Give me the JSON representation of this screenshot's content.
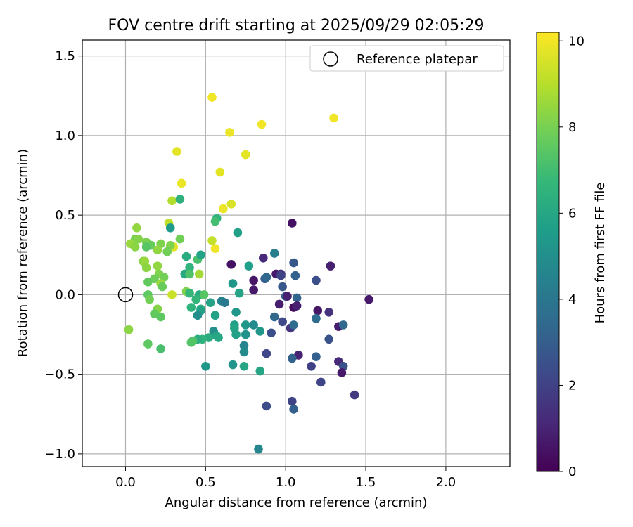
{
  "chart_data": {
    "type": "scatter",
    "title": "FOV centre drift starting at 2025/09/29 02:05:29",
    "xlabel": "Angular distance from reference (arcmin)",
    "ylabel": "Rotation from reference (arcmin)",
    "xlim": [
      -0.27,
      2.4
    ],
    "ylim": [
      -1.08,
      1.6
    ],
    "xticks": [
      0.0,
      0.5,
      1.0,
      1.5,
      2.0
    ],
    "xtick_labels": [
      "0.0",
      "0.5",
      "1.0",
      "1.5",
      "2.0"
    ],
    "yticks": [
      -1.0,
      -0.5,
      0.0,
      0.5,
      1.0,
      1.5
    ],
    "ytick_labels": [
      "−1.0",
      "−0.5",
      "0.0",
      "0.5",
      "1.0",
      "1.5"
    ],
    "grid": true,
    "legend": {
      "position": "top-right",
      "label": "Reference platepar"
    },
    "reference_point": {
      "x": 0.0,
      "y": 0.0
    },
    "colorbar": {
      "label": "Hours from first FF file",
      "range": [
        0,
        10.2
      ],
      "ticks": [
        0,
        2,
        4,
        6,
        8,
        10
      ],
      "tick_labels": [
        "0",
        "2",
        "4",
        "6",
        "8",
        "10"
      ],
      "colormap": [
        "#440154",
        "#482878",
        "#3e4989",
        "#31688e",
        "#26828e",
        "#1f9e89",
        "#35b779",
        "#6ece58",
        "#b5de2b",
        "#fde725"
      ]
    },
    "points": [
      {
        "x": 0.54,
        "y": 1.24,
        "h": 10.0
      },
      {
        "x": 1.3,
        "y": 1.11,
        "h": 10.0
      },
      {
        "x": 0.85,
        "y": 1.07,
        "h": 10.0
      },
      {
        "x": 0.65,
        "y": 1.02,
        "h": 9.9
      },
      {
        "x": 0.32,
        "y": 0.9,
        "h": 9.8
      },
      {
        "x": 0.75,
        "y": 0.88,
        "h": 9.8
      },
      {
        "x": 0.59,
        "y": 0.77,
        "h": 9.8
      },
      {
        "x": 0.35,
        "y": 0.7,
        "h": 9.9
      },
      {
        "x": 0.29,
        "y": 0.59,
        "h": 9.0
      },
      {
        "x": 0.66,
        "y": 0.57,
        "h": 9.6
      },
      {
        "x": 0.61,
        "y": 0.54,
        "h": 9.9
      },
      {
        "x": 0.27,
        "y": 0.45,
        "h": 9.2
      },
      {
        "x": 0.54,
        "y": 0.34,
        "h": 9.3
      },
      {
        "x": 0.3,
        "y": 0.3,
        "h": 9.8
      },
      {
        "x": 0.56,
        "y": 0.29,
        "h": 10.0
      },
      {
        "x": 0.29,
        "y": 0.0,
        "h": 9.4
      },
      {
        "x": 0.34,
        "y": 0.6,
        "h": 6.5
      },
      {
        "x": 0.57,
        "y": 0.48,
        "h": 6.6
      },
      {
        "x": 0.56,
        "y": 0.46,
        "h": 7.1
      },
      {
        "x": 0.28,
        "y": 0.42,
        "h": 5.6
      },
      {
        "x": 0.07,
        "y": 0.42,
        "h": 8.5
      },
      {
        "x": 0.06,
        "y": 0.35,
        "h": 8.1
      },
      {
        "x": 0.08,
        "y": 0.35,
        "h": 8.3
      },
      {
        "x": 0.34,
        "y": 0.35,
        "h": 8.0
      },
      {
        "x": 0.13,
        "y": 0.33,
        "h": 8.1
      },
      {
        "x": 0.03,
        "y": 0.32,
        "h": 8.6
      },
      {
        "x": 0.22,
        "y": 0.32,
        "h": 8.2
      },
      {
        "x": 0.16,
        "y": 0.31,
        "h": 7.8
      },
      {
        "x": 0.06,
        "y": 0.3,
        "h": 8.4
      },
      {
        "x": 0.13,
        "y": 0.3,
        "h": 7.5
      },
      {
        "x": 0.28,
        "y": 0.31,
        "h": 8.2
      },
      {
        "x": 0.2,
        "y": 0.28,
        "h": 8.5
      },
      {
        "x": 0.26,
        "y": 0.27,
        "h": 8.0
      },
      {
        "x": 0.38,
        "y": 0.24,
        "h": 6.3
      },
      {
        "x": 0.11,
        "y": 0.21,
        "h": 8.3
      },
      {
        "x": 0.12,
        "y": 0.21,
        "h": 8.6
      },
      {
        "x": 0.2,
        "y": 0.18,
        "h": 8.5
      },
      {
        "x": 0.13,
        "y": 0.17,
        "h": 8.4
      },
      {
        "x": 0.45,
        "y": 0.22,
        "h": 7.2
      },
      {
        "x": 0.47,
        "y": 0.25,
        "h": 5.9
      },
      {
        "x": 0.4,
        "y": 0.17,
        "h": 6.6
      },
      {
        "x": 0.46,
        "y": 0.13,
        "h": 8.8
      },
      {
        "x": 0.37,
        "y": 0.13,
        "h": 6.1
      },
      {
        "x": 0.4,
        "y": 0.13,
        "h": 7.3
      },
      {
        "x": 0.21,
        "y": 0.13,
        "h": 8.2
      },
      {
        "x": 0.24,
        "y": 0.11,
        "h": 8.0
      },
      {
        "x": 0.18,
        "y": 0.1,
        "h": 7.9
      },
      {
        "x": 0.14,
        "y": 0.08,
        "h": 7.7
      },
      {
        "x": 0.22,
        "y": 0.07,
        "h": 8.6
      },
      {
        "x": 0.23,
        "y": 0.05,
        "h": 7.8
      },
      {
        "x": 0.38,
        "y": 0.02,
        "h": 8.2
      },
      {
        "x": 0.4,
        "y": 0.01,
        "h": 6.8
      },
      {
        "x": 0.14,
        "y": 0.0,
        "h": 7.6
      },
      {
        "x": 0.46,
        "y": 0.0,
        "h": 6.2
      },
      {
        "x": 0.49,
        "y": 0.0,
        "h": 7.5
      },
      {
        "x": 0.15,
        "y": -0.03,
        "h": 8.0
      },
      {
        "x": 0.44,
        "y": -0.03,
        "h": 6.7
      },
      {
        "x": 0.6,
        "y": -0.04,
        "h": 4.6
      },
      {
        "x": 0.62,
        "y": -0.05,
        "h": 4.2
      },
      {
        "x": 0.53,
        "y": -0.05,
        "h": 5.9
      },
      {
        "x": 0.41,
        "y": -0.08,
        "h": 6.6
      },
      {
        "x": 0.47,
        "y": -0.09,
        "h": 6.4
      },
      {
        "x": 0.2,
        "y": -0.09,
        "h": 8.3
      },
      {
        "x": 0.47,
        "y": -0.1,
        "h": 5.8
      },
      {
        "x": 0.18,
        "y": -0.12,
        "h": 7.7
      },
      {
        "x": 0.22,
        "y": -0.14,
        "h": 7.6
      },
      {
        "x": 0.45,
        "y": -0.13,
        "h": 5.0
      },
      {
        "x": 0.56,
        "y": -0.13,
        "h": 5.8
      },
      {
        "x": 0.69,
        "y": -0.11,
        "h": 5.4
      },
      {
        "x": 0.02,
        "y": -0.22,
        "h": 8.4
      },
      {
        "x": 0.68,
        "y": -0.19,
        "h": 5.7
      },
      {
        "x": 0.75,
        "y": -0.19,
        "h": 5.4
      },
      {
        "x": 0.8,
        "y": -0.19,
        "h": 4.9
      },
      {
        "x": 0.68,
        "y": -0.21,
        "h": 5.9
      },
      {
        "x": 0.55,
        "y": -0.23,
        "h": 5.1
      },
      {
        "x": 0.84,
        "y": -0.23,
        "h": 5.4
      },
      {
        "x": 0.75,
        "y": -0.25,
        "h": 5.2
      },
      {
        "x": 0.69,
        "y": -0.25,
        "h": 5.8
      },
      {
        "x": 0.57,
        "y": -0.26,
        "h": 6.0
      },
      {
        "x": 0.58,
        "y": -0.27,
        "h": 6.1
      },
      {
        "x": 0.52,
        "y": -0.27,
        "h": 6.3
      },
      {
        "x": 0.48,
        "y": -0.28,
        "h": 6.6
      },
      {
        "x": 0.45,
        "y": -0.28,
        "h": 6.3
      },
      {
        "x": 0.42,
        "y": -0.29,
        "h": 7.3
      },
      {
        "x": 0.41,
        "y": -0.3,
        "h": 7.4
      },
      {
        "x": 0.14,
        "y": -0.31,
        "h": 7.6
      },
      {
        "x": 0.74,
        "y": -0.32,
        "h": 4.6
      },
      {
        "x": 0.22,
        "y": -0.34,
        "h": 7.2
      },
      {
        "x": 0.74,
        "y": -0.36,
        "h": 4.9
      },
      {
        "x": 0.67,
        "y": -0.44,
        "h": 5.3
      },
      {
        "x": 0.5,
        "y": -0.45,
        "h": 5.4
      },
      {
        "x": 0.74,
        "y": -0.45,
        "h": 6.0
      },
      {
        "x": 0.84,
        "y": -0.48,
        "h": 6.0
      },
      {
        "x": 0.83,
        "y": -0.97,
        "h": 4.7
      },
      {
        "x": 0.7,
        "y": 0.39,
        "h": 5.8
      },
      {
        "x": 0.77,
        "y": 0.18,
        "h": 5.7
      },
      {
        "x": 0.67,
        "y": 0.07,
        "h": 5.4
      },
      {
        "x": 0.71,
        "y": 0.01,
        "h": 5.9
      },
      {
        "x": 0.66,
        "y": 0.19,
        "h": 0.5
      },
      {
        "x": 0.8,
        "y": 0.09,
        "h": 0.6
      },
      {
        "x": 0.8,
        "y": 0.03,
        "h": 0.7
      },
      {
        "x": 0.86,
        "y": 0.23,
        "h": 1.2
      },
      {
        "x": 0.87,
        "y": 0.1,
        "h": 3.0
      },
      {
        "x": 0.88,
        "y": 0.11,
        "h": 3.4
      },
      {
        "x": 0.93,
        "y": 0.26,
        "h": 4.4
      },
      {
        "x": 0.94,
        "y": 0.13,
        "h": 0.7
      },
      {
        "x": 0.97,
        "y": 0.13,
        "h": 1.4
      },
      {
        "x": 0.97,
        "y": 0.12,
        "h": 2.1
      },
      {
        "x": 0.98,
        "y": 0.05,
        "h": 2.8
      },
      {
        "x": 0.96,
        "y": -0.06,
        "h": 0.8
      },
      {
        "x": 1.0,
        "y": -0.01,
        "h": 3.0
      },
      {
        "x": 1.01,
        "y": -0.01,
        "h": 0.9
      },
      {
        "x": 1.04,
        "y": 0.45,
        "h": 0.5
      },
      {
        "x": 1.05,
        "y": 0.2,
        "h": 2.8
      },
      {
        "x": 1.06,
        "y": 0.12,
        "h": 3.1
      },
      {
        "x": 1.05,
        "y": -0.08,
        "h": 0.4
      },
      {
        "x": 1.07,
        "y": -0.02,
        "h": 3.3
      },
      {
        "x": 1.07,
        "y": -0.07,
        "h": 0.9
      },
      {
        "x": 0.93,
        "y": -0.14,
        "h": 3.4
      },
      {
        "x": 0.98,
        "y": -0.17,
        "h": 2.3
      },
      {
        "x": 1.03,
        "y": -0.21,
        "h": 1.6
      },
      {
        "x": 1.05,
        "y": -0.19,
        "h": 3.6
      },
      {
        "x": 0.91,
        "y": -0.24,
        "h": 2.5
      },
      {
        "x": 0.88,
        "y": -0.37,
        "h": 2.2
      },
      {
        "x": 1.08,
        "y": -0.38,
        "h": 1.0
      },
      {
        "x": 1.04,
        "y": -0.4,
        "h": 3.2
      },
      {
        "x": 0.88,
        "y": -0.7,
        "h": 2.4
      },
      {
        "x": 1.04,
        "y": -0.67,
        "h": 2.1
      },
      {
        "x": 1.05,
        "y": -0.72,
        "h": 3.1
      },
      {
        "x": 1.19,
        "y": 0.09,
        "h": 2.5
      },
      {
        "x": 1.28,
        "y": 0.18,
        "h": 0.9
      },
      {
        "x": 1.2,
        "y": -0.1,
        "h": 0.6
      },
      {
        "x": 1.27,
        "y": -0.11,
        "h": 1.5
      },
      {
        "x": 1.19,
        "y": -0.15,
        "h": 3.6
      },
      {
        "x": 1.33,
        "y": -0.2,
        "h": 0.8
      },
      {
        "x": 1.36,
        "y": -0.19,
        "h": 3.4
      },
      {
        "x": 1.27,
        "y": -0.28,
        "h": 2.6
      },
      {
        "x": 1.19,
        "y": -0.39,
        "h": 3.1
      },
      {
        "x": 1.16,
        "y": -0.45,
        "h": 2.0
      },
      {
        "x": 1.33,
        "y": -0.42,
        "h": 1.2
      },
      {
        "x": 1.36,
        "y": -0.45,
        "h": 2.6
      },
      {
        "x": 1.35,
        "y": -0.49,
        "h": 0.7
      },
      {
        "x": 1.22,
        "y": -0.55,
        "h": 2.1
      },
      {
        "x": 1.43,
        "y": -0.63,
        "h": 1.8
      },
      {
        "x": 1.52,
        "y": -0.03,
        "h": 0.7
      }
    ]
  }
}
